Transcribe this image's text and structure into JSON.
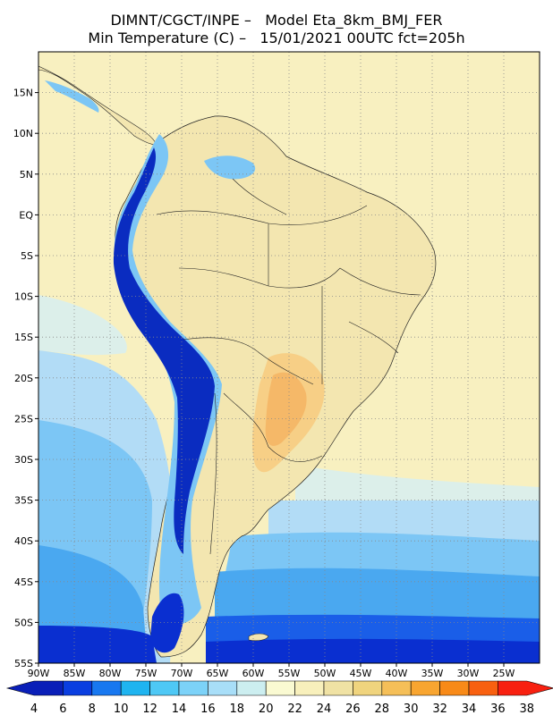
{
  "title_line1": "DIMNT/CGCT/INPE –   Model Eta_8km_BMJ_FER",
  "title_line2": "Min Temperature (C) –   15/01/2021 00UTC fct=205h",
  "lat_ticks": [
    "15N",
    "10N",
    "5N",
    "EQ",
    "5S",
    "10S",
    "15S",
    "20S",
    "25S",
    "30S",
    "35S",
    "40S",
    "45S",
    "50S",
    "55S"
  ],
  "lon_ticks": [
    "90W",
    "85W",
    "80W",
    "75W",
    "70W",
    "65W",
    "60W",
    "55W",
    "50W",
    "45W",
    "40W",
    "35W",
    "30W",
    "25W"
  ],
  "colorbar": {
    "labels": [
      "4",
      "6",
      "8",
      "10",
      "12",
      "14",
      "16",
      "18",
      "20",
      "22",
      "24",
      "26",
      "28",
      "30",
      "32",
      "34",
      "36",
      "38"
    ],
    "colors": [
      "#0a1fb8",
      "#0a3ee0",
      "#1878f0",
      "#1fb4f0",
      "#4ec8f5",
      "#7cd2f8",
      "#a8def8",
      "#cceef0",
      "#fafad2",
      "#f8f0bc",
      "#f0e2a4",
      "#f0d47e",
      "#f5bf58",
      "#f8a530",
      "#f88a18",
      "#f86010",
      "#f82010"
    ]
  },
  "map": {
    "lon_range": [
      -90,
      -20
    ],
    "lat_range": [
      -55,
      20
    ],
    "colors": {
      "ocean_warm": "#f8f0c0",
      "ocean_mid": "#d8eef0",
      "ocean_cool": "#a8d8f8",
      "ocean_cold": "#5ab4f0",
      "ocean_colder": "#2f8ff0",
      "ocean_coldest": "#0a2fd0",
      "land": "#f3e6b0",
      "andes": "#0a2cc0",
      "warm_core": "#f5b868"
    }
  }
}
